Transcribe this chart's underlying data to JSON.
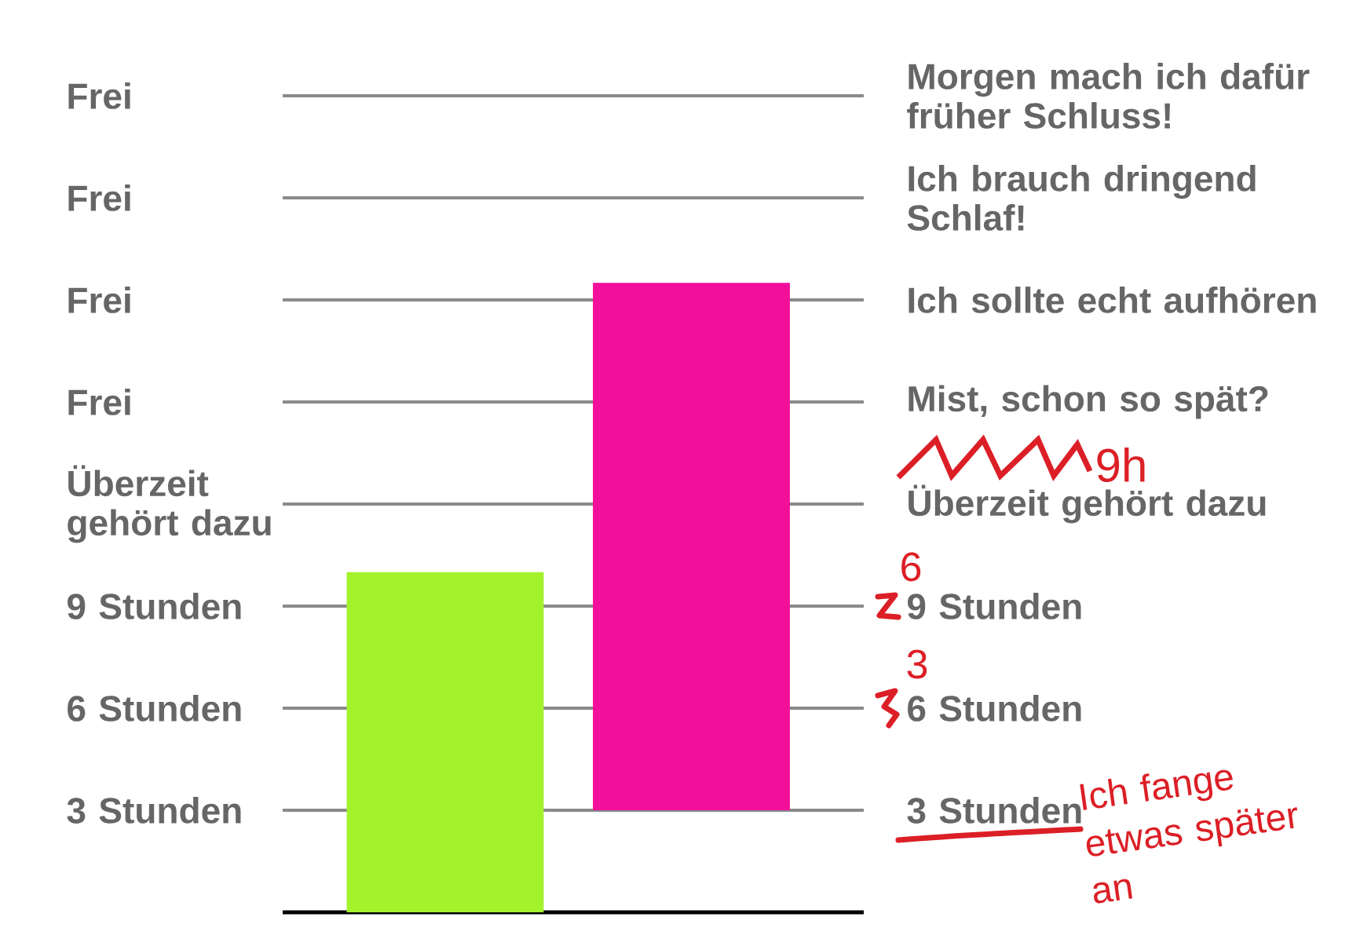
{
  "chart_data": {
    "type": "bar",
    "categories": [
      null,
      null
    ],
    "values": [
      10,
      15.5
    ],
    "base": [
      0,
      3
    ],
    "colors": [
      "#a3f22b",
      "#f20f9a"
    ],
    "ylim": [
      0,
      24
    ],
    "yticks": [
      {
        "value": 3,
        "label": "3 Stunden"
      },
      {
        "value": 6,
        "label": "6 Stunden"
      },
      {
        "value": 9,
        "label": "9 Stunden"
      },
      {
        "value": 12,
        "label": "Überzeit gehört dazu"
      },
      {
        "value": 15,
        "label": "Frei"
      },
      {
        "value": 18,
        "label": "Frei"
      },
      {
        "value": 21,
        "label": "Frei"
      },
      {
        "value": 24,
        "label": "Frei"
      }
    ],
    "y2lim": [
      0,
      24
    ],
    "y2ticks": [
      {
        "value": 3,
        "label": "3 Stunden"
      },
      {
        "value": 6,
        "label": "6 Stunden"
      },
      {
        "value": 9,
        "label": "9 Stunden"
      },
      {
        "value": 12,
        "label": "Überzeit gehört dazu"
      },
      {
        "value": 15,
        "label": "Mist, schon so spät?"
      },
      {
        "value": 18,
        "label": "Ich sollte echt aufhören"
      },
      {
        "value": 21,
        "label": "Ich brauch dringend Schlaf!"
      },
      {
        "value": 24,
        "label": "Morgen mach ich dafür früher Schluss!"
      }
    ],
    "grid": "y",
    "annotations": [
      "9h",
      "6",
      "3",
      "Ich fange etwas später an"
    ]
  }
}
